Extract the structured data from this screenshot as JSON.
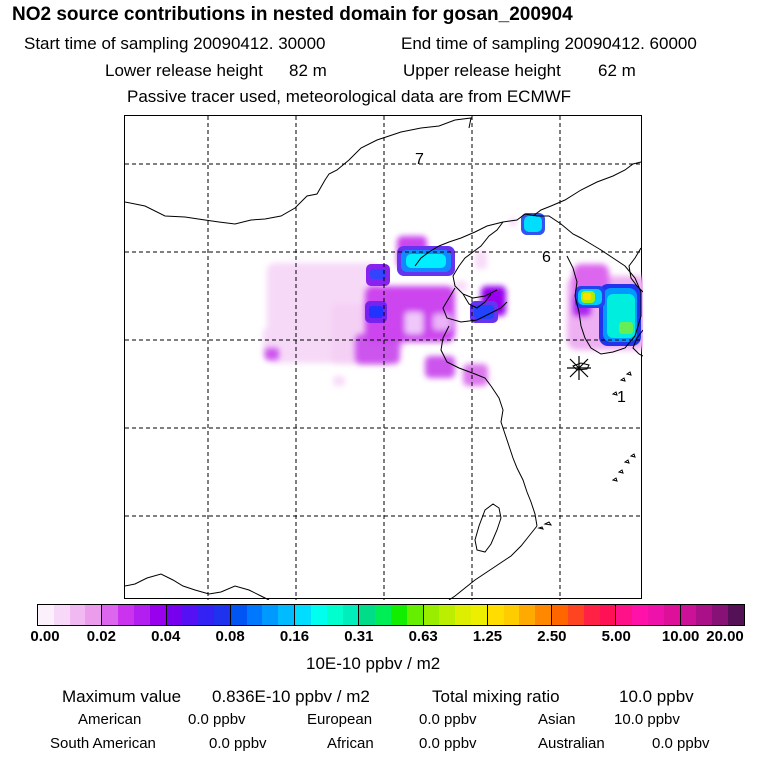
{
  "header": {
    "title": "NO2 source contributions in nested domain for gosan_200904",
    "start_label": "Start time of sampling 20090412. 30000",
    "end_label": "End time of sampling 20090412. 60000",
    "lower_label": "Lower release height",
    "lower_value": "82 m",
    "upper_label": "Upper release height",
    "upper_value": "62 m",
    "note": "Passive tracer used, meteorological data are from ECMWF"
  },
  "map": {
    "markers": [
      "7",
      "6",
      "1"
    ],
    "receptor_symbol": "*"
  },
  "colorbar": {
    "ticks": [
      "0.00",
      "0.02",
      "0.04",
      "0.08",
      "0.16",
      "0.31",
      "0.63",
      "1.25",
      "2.50",
      "5.00",
      "10.00",
      "20.00"
    ],
    "unit": "10E-10 ppbv / m2",
    "segments": [
      [
        "#fdf0fd",
        "#f8d8f8",
        "#f1b9f1",
        "#eb9ceb"
      ],
      [
        "#dd66ee",
        "#cc33ee",
        "#b31ff0",
        "#9900ee"
      ],
      [
        "#7700ee",
        "#5511f3",
        "#3322f3",
        "#1f33ee"
      ],
      [
        "#0055f3",
        "#0077ff",
        "#0099ff",
        "#00bbff"
      ],
      [
        "#00ddff",
        "#00ffee",
        "#00ffcc",
        "#00eebb"
      ],
      [
        "#00dd88",
        "#00ee55",
        "#11ee00",
        "#66ee00"
      ],
      [
        "#99ee00",
        "#bbee00",
        "#ddee00",
        "#eeee00"
      ],
      [
        "#ffdd00",
        "#ffcc00",
        "#ffaa00",
        "#ff8800"
      ],
      [
        "#ff6600",
        "#ff4422",
        "#ff2244",
        "#ff1155"
      ],
      [
        "#ff1188",
        "#ff11aa",
        "#ee11aa",
        "#dd1199"
      ],
      [
        "#cc1199",
        "#aa1188",
        "#881177",
        "#551155"
      ]
    ]
  },
  "stats": {
    "max_label": "Maximum value",
    "max_value": "0.836E-10 ppbv / m2",
    "total_label": "Total mixing ratio",
    "total_value": "10.0 ppbv",
    "regions": [
      {
        "name": "American",
        "value": "0.0 ppbv"
      },
      {
        "name": "European",
        "value": "0.0 ppbv"
      },
      {
        "name": "Asian",
        "value": "10.0 ppbv"
      },
      {
        "name": "South American",
        "value": "0.0 ppbv"
      },
      {
        "name": "African",
        "value": "0.0 ppbv"
      },
      {
        "name": "Australian",
        "value": "0.0 ppbv"
      }
    ]
  }
}
